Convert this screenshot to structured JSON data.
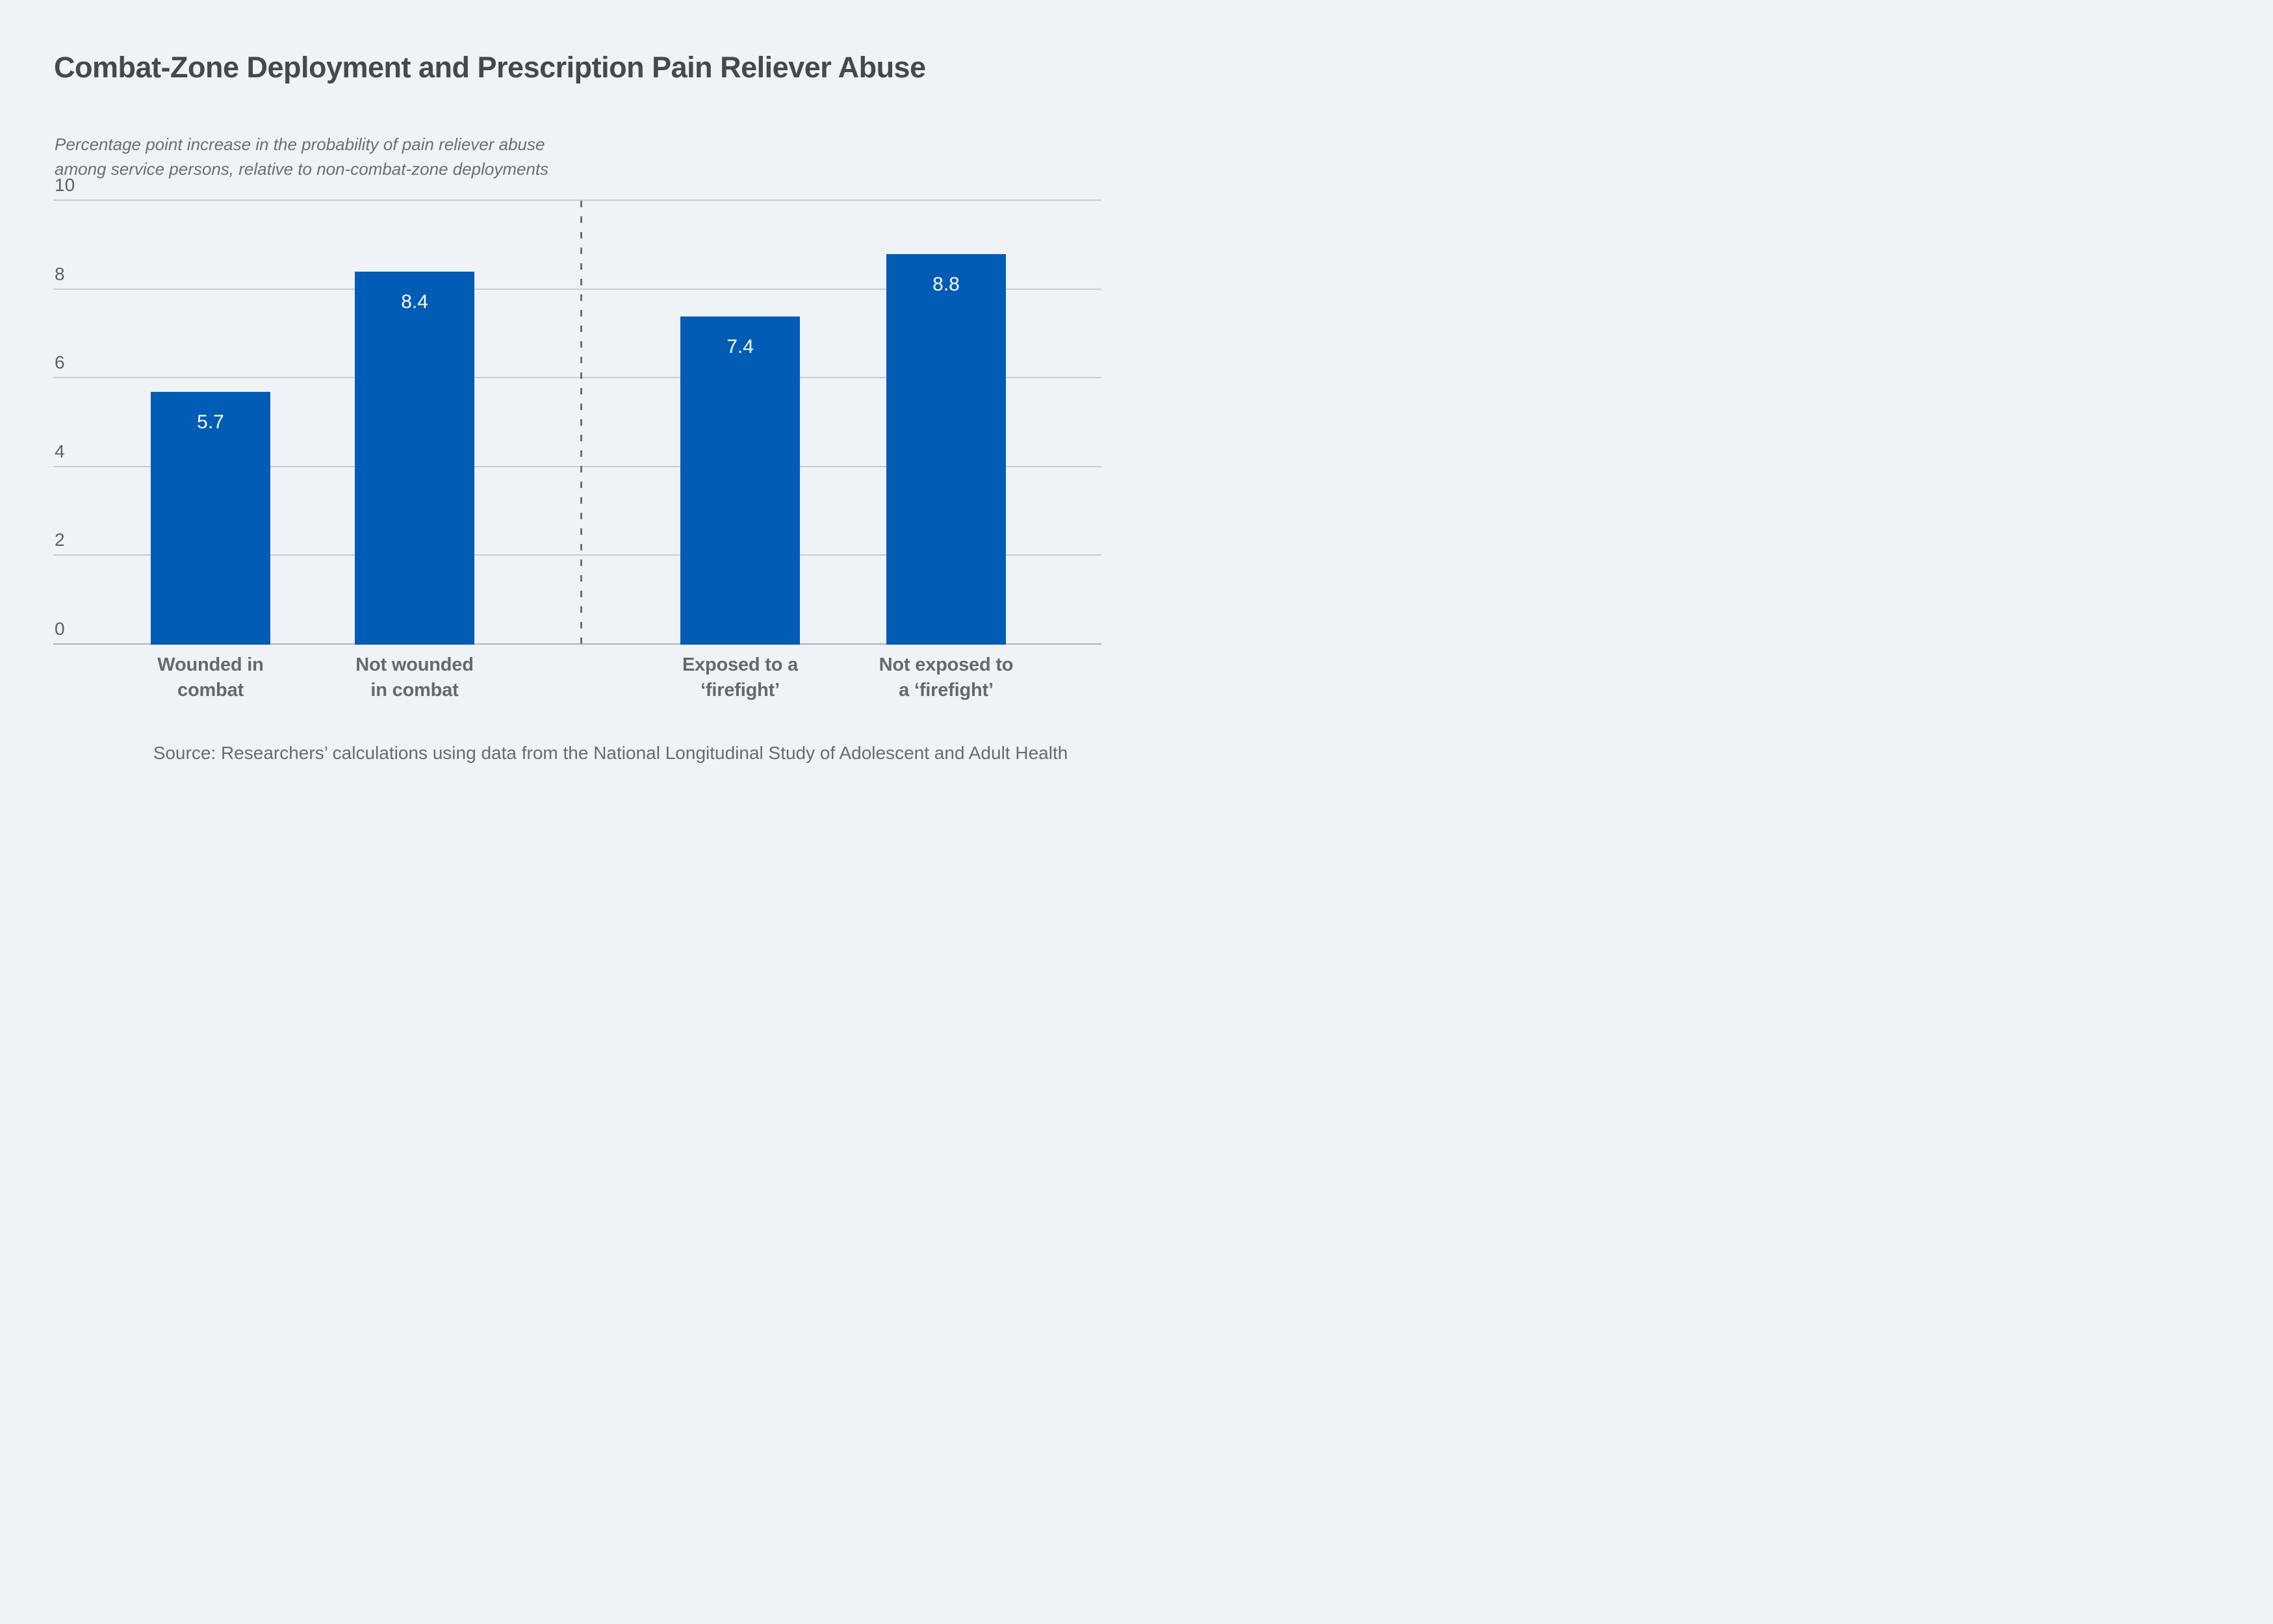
{
  "page": {
    "title": "Combat-Zone Deployment and Prescription Pain Reliever Abuse",
    "subtitle_line1": "Percentage point increase in the probability of pain reliever abuse",
    "subtitle_line2": "among service persons, relative to non-combat-zone deployments",
    "source": "Source: Researchers’ calculations using data from the National Longitudinal Study of Adolescent and Adult Health"
  },
  "chart_data": {
    "type": "bar",
    "title": "Combat-Zone Deployment and Prescription Pain Reliever Abuse",
    "subtitle": "Percentage point increase in the probability of pain reliever abuse among service persons, relative to non-combat-zone deployments",
    "categories": [
      "Wounded in combat",
      "Not wounded in combat",
      "Exposed to a ‘firefight’",
      "Not exposed to a ‘firefight’"
    ],
    "values": [
      5.7,
      8.4,
      7.4,
      8.8
    ],
    "bars": [
      {
        "value": 5.7,
        "value_label": "5.7",
        "label_line1": "Wounded in",
        "label_line2": "combat"
      },
      {
        "value": 8.4,
        "value_label": "8.4",
        "label_line1": "Not wounded",
        "label_line2": "in combat"
      },
      {
        "value": 7.4,
        "value_label": "7.4",
        "label_line1": "Exposed to a",
        "label_line2": "‘firefight’"
      },
      {
        "value": 8.8,
        "value_label": "8.8",
        "label_line1": "Not exposed to",
        "label_line2": "a ‘firefight’"
      }
    ],
    "y_axis": {
      "ylim": [
        0,
        10
      ],
      "ticks": [
        10,
        8,
        6,
        4,
        2,
        0
      ],
      "tick_labels": [
        "10",
        "8",
        "6",
        "4",
        "2",
        "0"
      ],
      "grid": true
    },
    "group_divider": "dashed vertical line between the two bar pairs",
    "legend": "none",
    "colors": {
      "bar": "#005CB5",
      "background": "#EFF3F8",
      "title_text": "#45494E",
      "label_text": "#63696F",
      "gridline": "#C8CDD3",
      "bar_value_text": "#FFFFFF"
    }
  }
}
